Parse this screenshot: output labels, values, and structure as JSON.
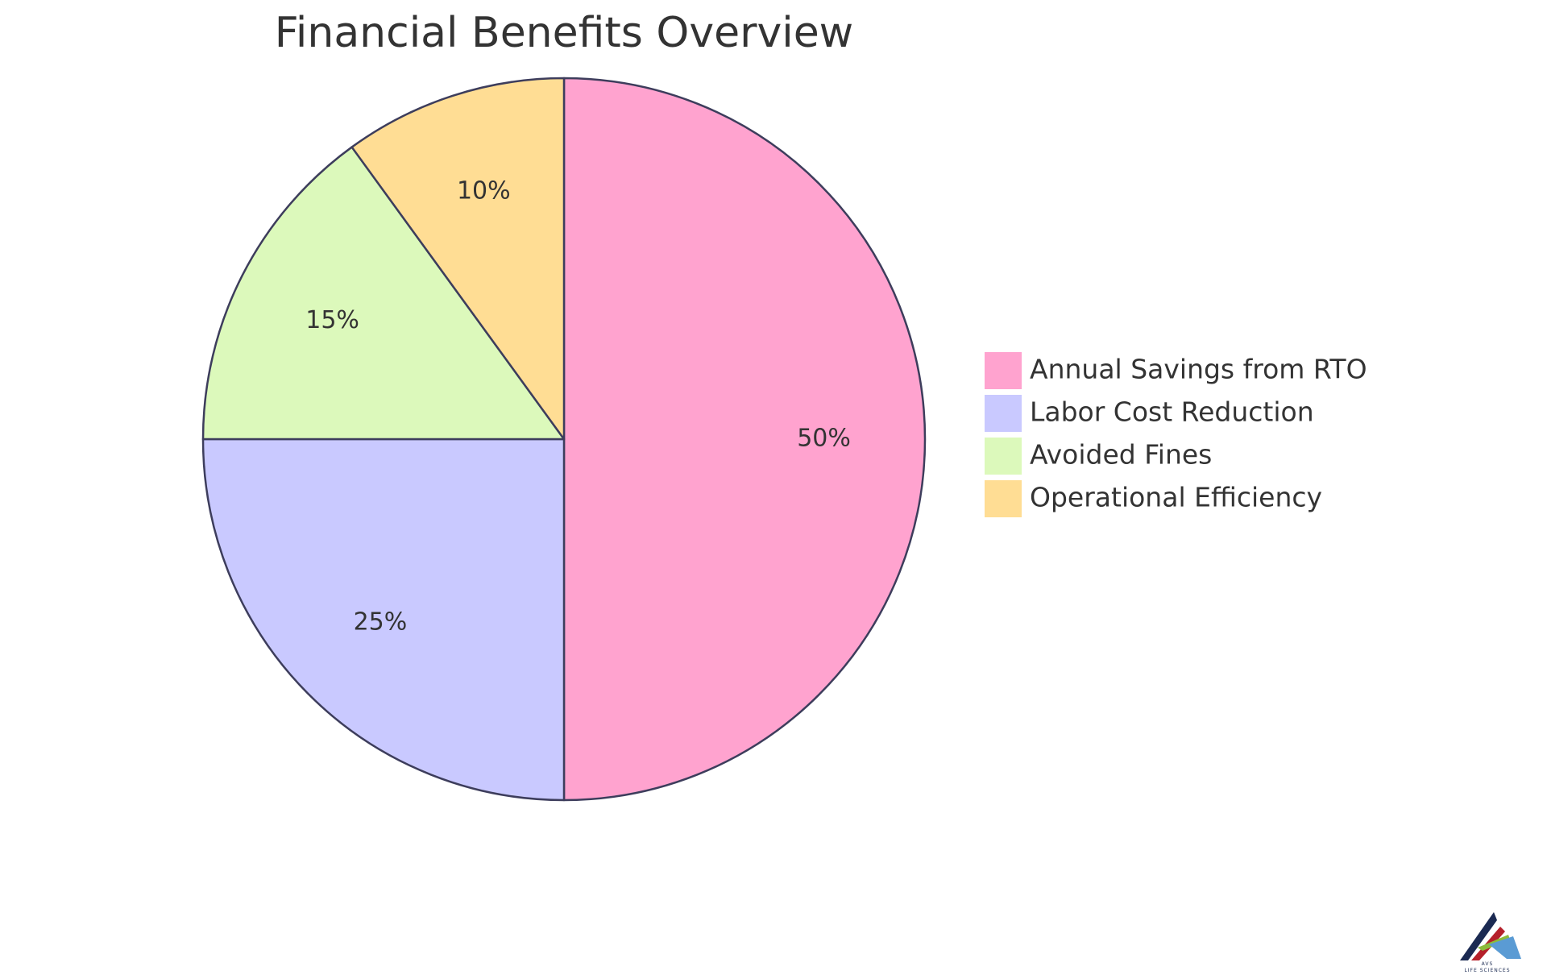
{
  "chart_data": {
    "type": "pie",
    "title": "Financial Benefits Overview",
    "categories": [
      "Annual Savings from RTO",
      "Labor Cost Reduction",
      "Avoided Fines",
      "Operational Efficiency"
    ],
    "values": [
      50,
      25,
      15,
      10
    ],
    "value_labels": [
      "50%",
      "25%",
      "15%",
      "10%"
    ],
    "colors": [
      "#ffa3cf",
      "#c9c9ff",
      "#dcf9bb",
      "#ffdd94"
    ],
    "stroke_color": "#3d3d5c",
    "start_angle": "12 o'clock",
    "direction": "clockwise",
    "legend_position": "right"
  },
  "logo": {
    "caption_top": "AVS",
    "caption_bottom": "LIFE SCIENCES",
    "colors": [
      "#1b2a52",
      "#b5202a",
      "#8dbb3b",
      "#5a9bd4"
    ]
  }
}
